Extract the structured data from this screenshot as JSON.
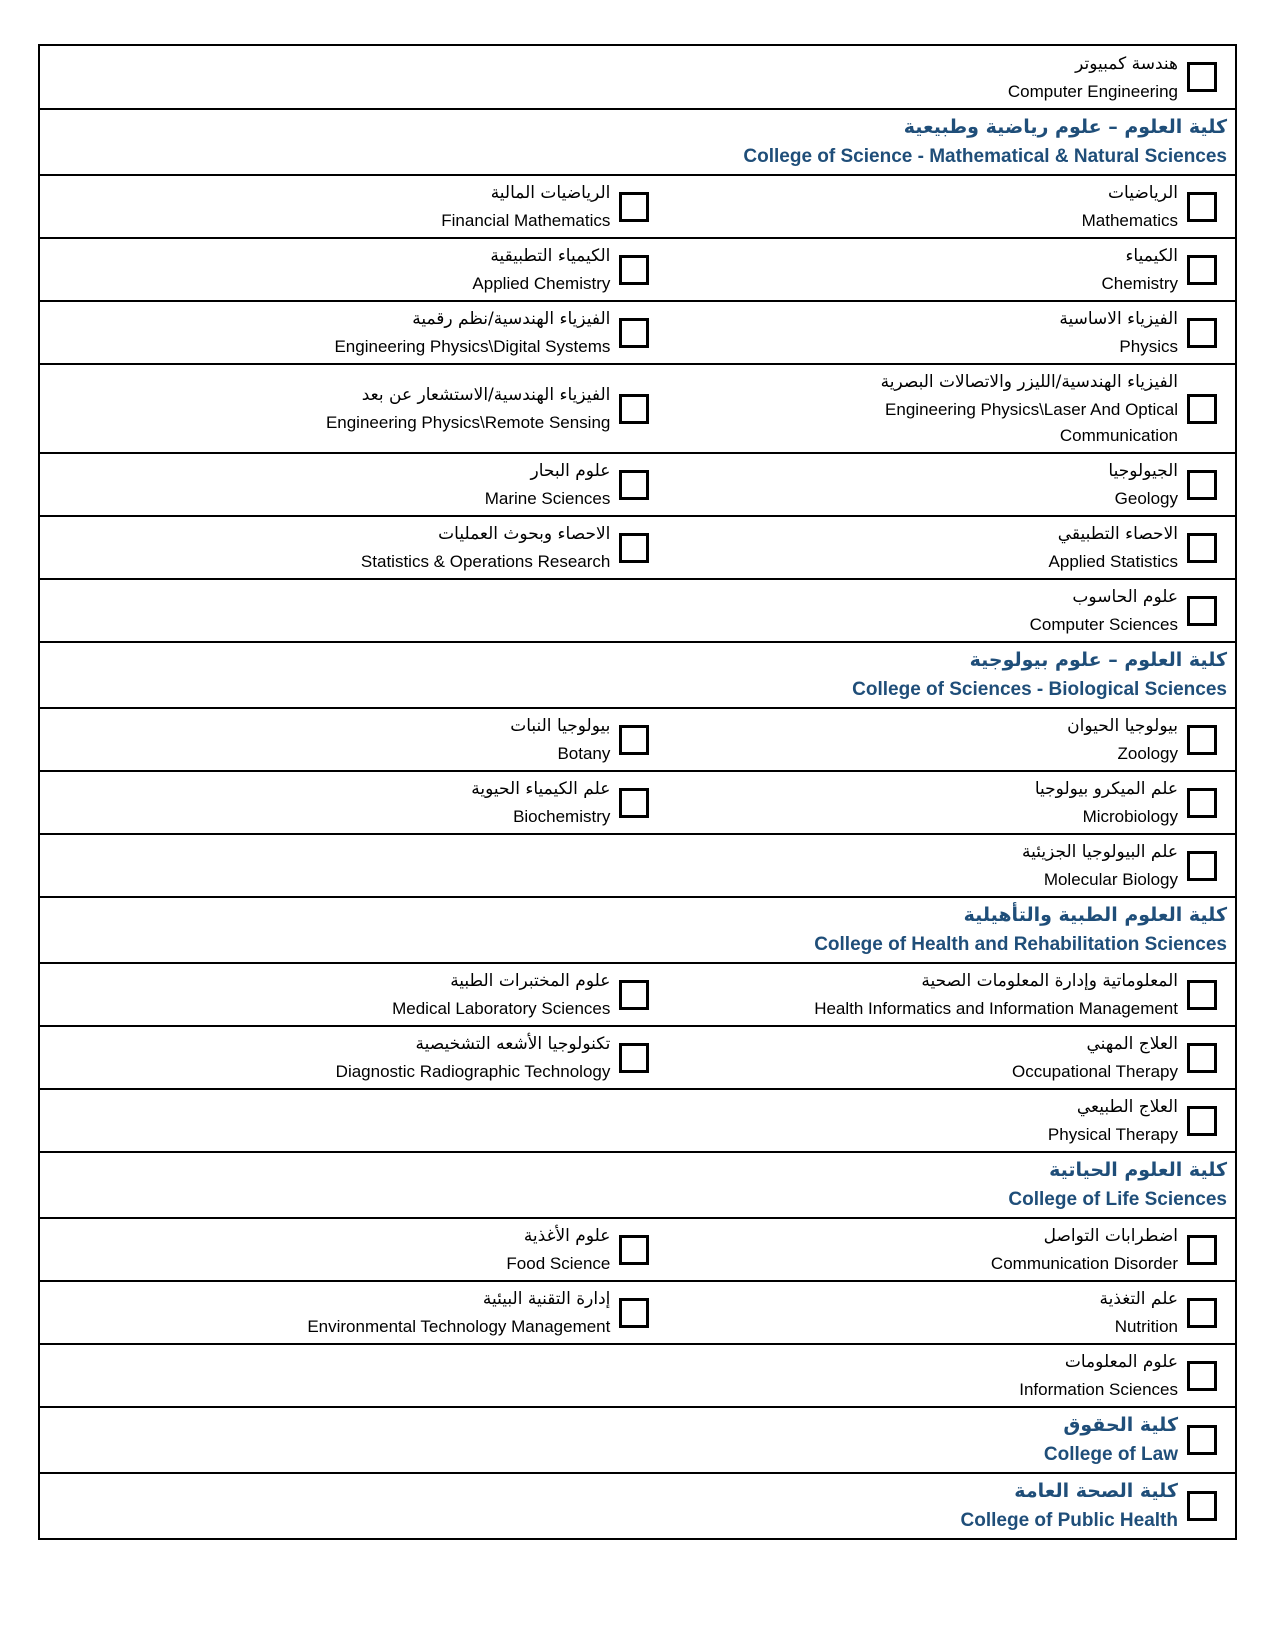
{
  "colors": {
    "accent": "#1F4E79",
    "border": "#000000",
    "text": "#000000",
    "background": "#FFFFFF"
  },
  "table": {
    "rows": [
      {
        "type": "pair",
        "left": null,
        "right": {
          "ar": "هندسة كمبيوتر",
          "en": "Computer Engineering"
        }
      },
      {
        "type": "header",
        "ar": "كلية العلوم – علوم رياضية وطبيعية",
        "en": "College of Science - Mathematical & Natural Sciences"
      },
      {
        "type": "pair",
        "left": {
          "ar": "الرياضيات المالية",
          "en": "Financial Mathematics"
        },
        "right": {
          "ar": "الرياضيات",
          "en": "Mathematics"
        }
      },
      {
        "type": "pair",
        "left": {
          "ar": "الكيمياء التطبيقية",
          "en": "Applied Chemistry"
        },
        "right": {
          "ar": "الكيمياء",
          "en": "Chemistry"
        }
      },
      {
        "type": "pair",
        "left": {
          "ar": "الفيزياء الهندسية/نظم رقمية",
          "en": "Engineering Physics\\Digital Systems"
        },
        "right": {
          "ar": "الفيزياء الاساسية",
          "en": "Physics"
        }
      },
      {
        "type": "pair",
        "left": {
          "ar": "الفيزياء الهندسية/الاستشعار عن بعد",
          "en": "Engineering Physics\\Remote Sensing"
        },
        "right": {
          "ar": "الفيزياء الهندسية/الليزر والاتصالات البصرية",
          "en": "Engineering Physics\\Laser And Optical Communication"
        }
      },
      {
        "type": "pair",
        "left": {
          "ar": "علوم البحار",
          "en": "Marine Sciences"
        },
        "right": {
          "ar": "الجيولوجيا",
          "en": "Geology"
        }
      },
      {
        "type": "pair",
        "left": {
          "ar": "الاحصاء وبحوث العمليات",
          "en": "Statistics & Operations Research"
        },
        "right": {
          "ar": "الاحصاء التطبيقي",
          "en": "Applied Statistics"
        }
      },
      {
        "type": "pair",
        "left": null,
        "right": {
          "ar": "علوم الحاسوب",
          "en": "Computer Sciences"
        }
      },
      {
        "type": "header",
        "ar": "كلية العلوم – علوم بيولوجية",
        "en": "College of Sciences - Biological Sciences"
      },
      {
        "type": "pair",
        "left": {
          "ar": "بيولوجيا النبات",
          "en": "Botany"
        },
        "right": {
          "ar": "بيولوجيا الحيوان",
          "en": "Zoology"
        }
      },
      {
        "type": "pair",
        "left": {
          "ar": "علم الكيمياء الحيوية",
          "en": "Biochemistry"
        },
        "right": {
          "ar": "علم الميكرو بيولوجيا",
          "en": "Microbiology"
        }
      },
      {
        "type": "pair",
        "left": null,
        "right": {
          "ar": "علم البيولوجيا الجزيئية",
          "en": "Molecular Biology"
        }
      },
      {
        "type": "header",
        "ar": "كلية العلوم الطبية والتأهيلية",
        "en": "College of Health and Rehabilitation Sciences"
      },
      {
        "type": "pair",
        "left": {
          "ar": "علوم المختبرات الطبية",
          "en": "Medical Laboratory Sciences"
        },
        "right": {
          "ar": "المعلوماتية وإدارة المعلومات الصحية",
          "en": "Health Informatics and Information Management"
        }
      },
      {
        "type": "pair",
        "left": {
          "ar": "تكنولوجيا الأشعه التشخيصية",
          "en": "Diagnostic Radiographic Technology"
        },
        "right": {
          "ar": "العلاج المهني",
          "en": "Occupational Therapy"
        }
      },
      {
        "type": "pair",
        "left": null,
        "right": {
          "ar": "العلاج الطبيعي",
          "en": "Physical Therapy"
        }
      },
      {
        "type": "header",
        "ar": "كلية العلوم الحياتية",
        "en": "College of Life Sciences"
      },
      {
        "type": "pair",
        "left": {
          "ar": "علوم الأغذية",
          "en": "Food Science"
        },
        "right": {
          "ar": "اضطرابات التواصل",
          "en": "Communication Disorder"
        }
      },
      {
        "type": "pair",
        "left": {
          "ar": "إدارة التقنية البيئية",
          "en": "Environmental Technology Management"
        },
        "right": {
          "ar": "علم التغذية",
          "en": "Nutrition"
        }
      },
      {
        "type": "pair",
        "left": null,
        "right": {
          "ar": "علوم المعلومات",
          "en": "Information Sciences"
        }
      },
      {
        "type": "college_option",
        "ar": "كلية الحقوق",
        "en": "College of Law"
      },
      {
        "type": "college_option",
        "ar": "كلية الصحة العامة",
        "en": "College of Public Health"
      }
    ]
  },
  "checkbox_state": "unchecked"
}
